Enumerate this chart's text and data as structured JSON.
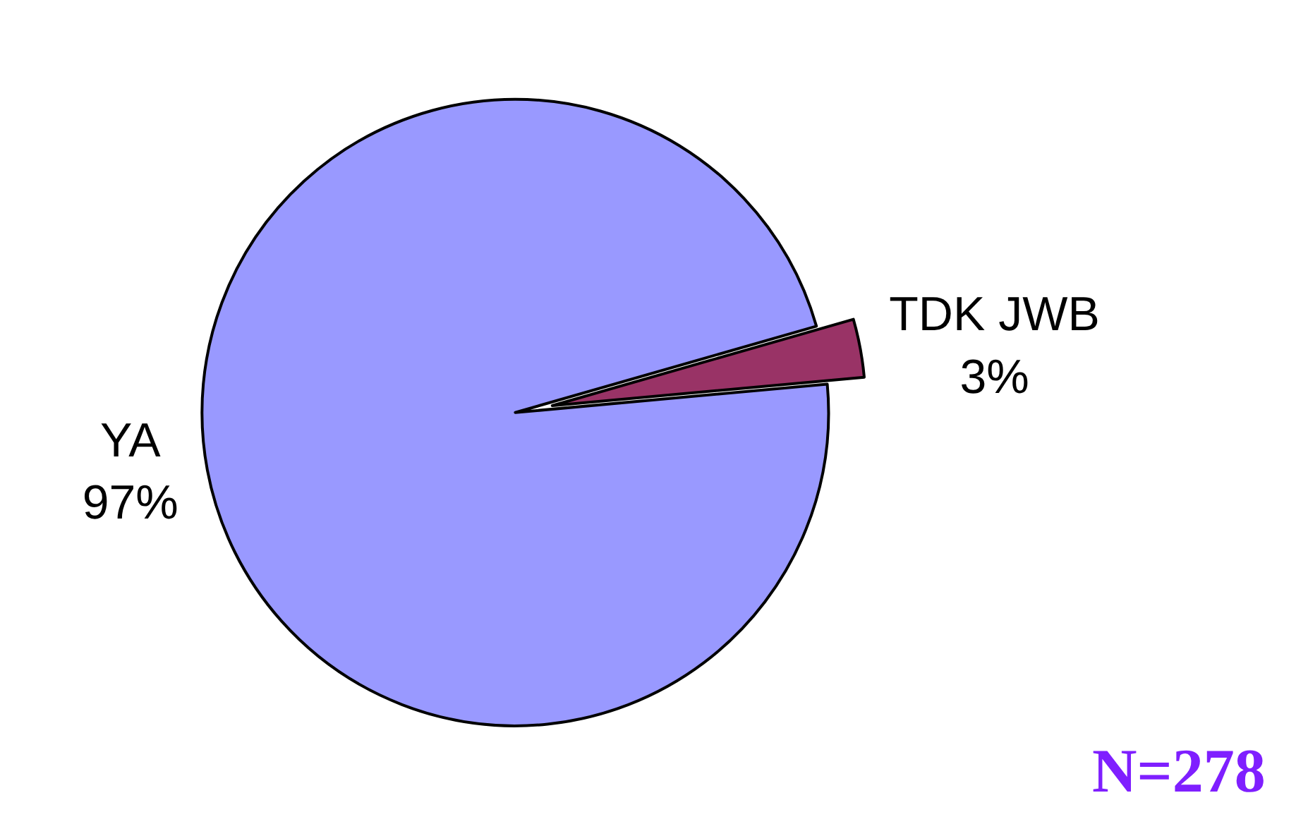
{
  "chart_data": {
    "type": "pie",
    "categories": [
      "TDK JWB",
      "YA"
    ],
    "values": [
      3,
      97
    ],
    "colors": [
      "#993366",
      "#9999ff"
    ],
    "value_labels": [
      "3%",
      "97%"
    ],
    "legend": false,
    "annotations": [
      "N=278"
    ]
  }
}
